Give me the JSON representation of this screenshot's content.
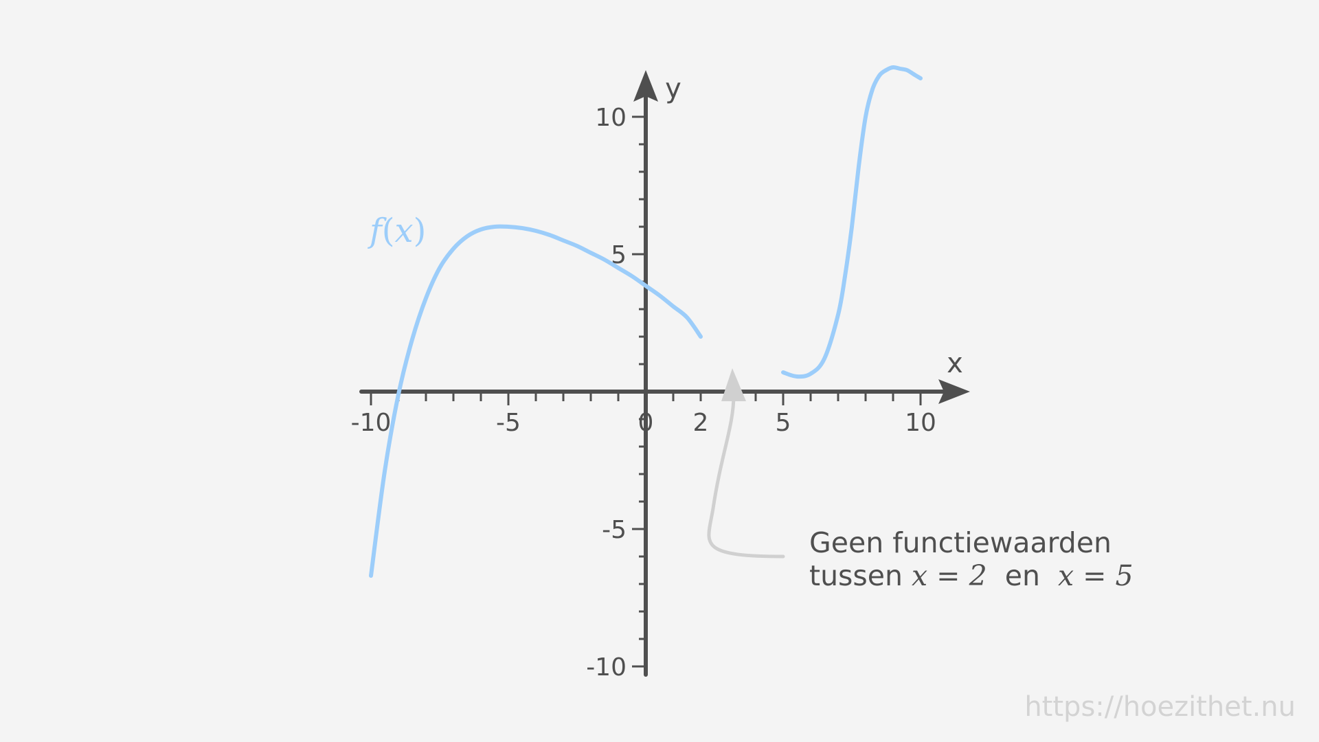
{
  "colors": {
    "background": "#f4f4f4",
    "axis": "#4f4f4f",
    "curve": "#9ccdfa",
    "annotation_arrow": "#d0d0d0",
    "watermark": "#d3d3d3"
  },
  "chart_data": {
    "type": "line",
    "xlabel": "x",
    "ylabel": "y",
    "xlim": [
      -10,
      10
    ],
    "ylim": [
      -10,
      10
    ],
    "grid": false,
    "x_tick_labels": [
      "-10",
      "-5",
      "0",
      "2",
      "5",
      "10"
    ],
    "y_tick_labels": [
      "10",
      "5",
      "-5",
      "-10"
    ],
    "series": [
      {
        "name": "f(x)",
        "segments": [
          {
            "x": [
              -10,
              -9.5,
              -9,
              -8.5,
              -8,
              -7.5,
              -7,
              -6.5,
              -6,
              -5.5,
              -5,
              -4.5,
              -4,
              -3.5,
              -3,
              -2.5,
              -2,
              -1.5,
              -1,
              -0.5,
              0,
              0.5,
              1,
              1.5,
              2
            ],
            "y": [
              -6.7,
              -2.9,
              -0.1,
              1.9,
              3.4,
              4.5,
              5.2,
              5.65,
              5.9,
              6.0,
              6.0,
              5.95,
              5.85,
              5.7,
              5.5,
              5.3,
              5.05,
              4.8,
              4.5,
              4.2,
              3.85,
              3.5,
              3.1,
              2.7,
              2.0
            ]
          },
          {
            "x": [
              5,
              5.5,
              6,
              6.5,
              7,
              7.25,
              7.5,
              7.75,
              8,
              8.25,
              8.5,
              8.75,
              9,
              9.25,
              9.5,
              9.75,
              10
            ],
            "y": [
              0.7,
              0.55,
              0.65,
              1.2,
              2.8,
              4.2,
              6.0,
              8.2,
              10.0,
              11.0,
              11.5,
              11.7,
              11.8,
              11.75,
              11.7,
              11.55,
              11.4
            ]
          }
        ]
      }
    ],
    "annotations": [
      {
        "line1": "Geen functiewaarden",
        "line2_prefix": "tussen ",
        "math1": "x = 2",
        "connector": "  en  ",
        "math2": "x = 5",
        "arrow_target_x": 3.2
      }
    ],
    "function_label": {
      "name": "f",
      "open": "(",
      "var": "x",
      "close": ")"
    }
  },
  "watermark": "https://hoezithet.nu"
}
